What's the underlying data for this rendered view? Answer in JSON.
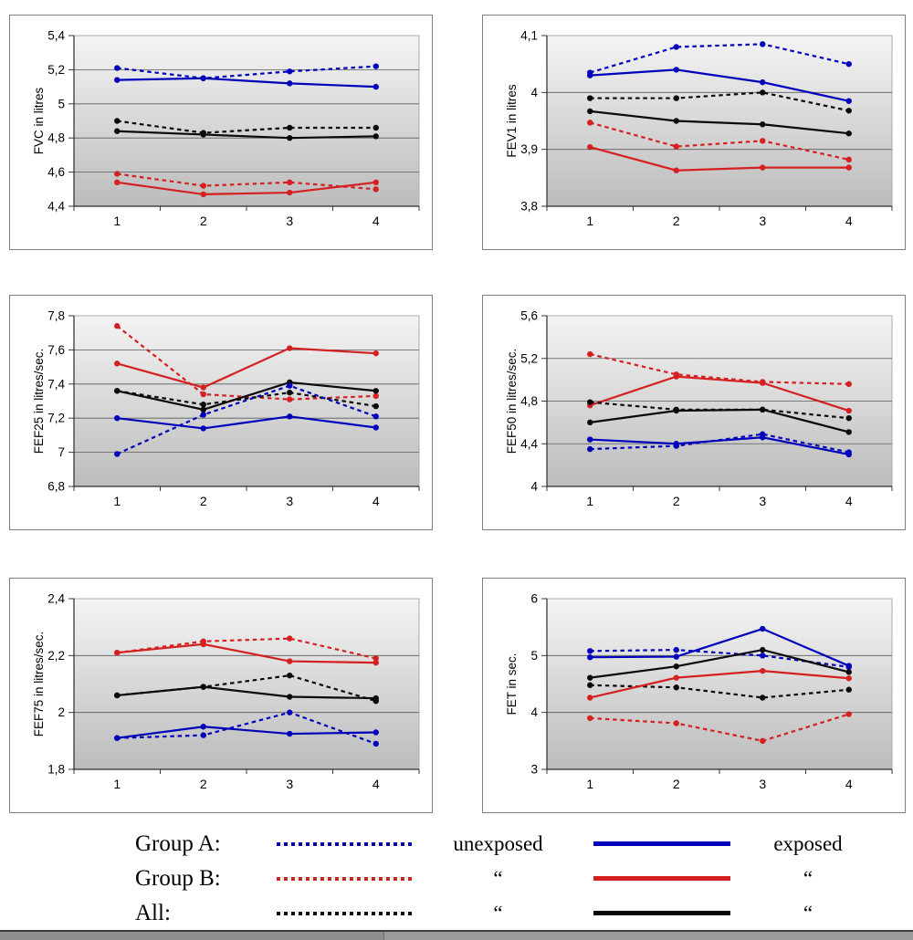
{
  "colors": {
    "blue": "#0000bb",
    "red": "#d42020",
    "black": "#0a0a0a"
  },
  "legend": {
    "rows": [
      {
        "group_label": "Group A:",
        "color": "blue",
        "dash_text": "unexposed",
        "solid_text": "exposed"
      },
      {
        "group_label": "Group B:",
        "color": "red",
        "dash_text": "“",
        "solid_text": "“"
      },
      {
        "group_label": "All:",
        "color": "black",
        "dash_text": "“",
        "solid_text": "“"
      }
    ]
  },
  "chart_data": [
    {
      "type": "line",
      "ylabel": "FVC in litres",
      "ylim": [
        4.4,
        5.4
      ],
      "yticks": [
        4.4,
        4.6,
        4.8,
        5,
        5.2,
        5.4
      ],
      "ytick_labels": [
        "4,4",
        "4,6",
        "4,8",
        "5",
        "5,2",
        "5,4"
      ],
      "categories": [
        "1",
        "2",
        "3",
        "4"
      ],
      "grid": true,
      "series": [
        {
          "name": "Group A unexposed",
          "color": "blue",
          "style": "dashed",
          "values": [
            5.21,
            5.15,
            5.19,
            5.22
          ]
        },
        {
          "name": "Group A exposed",
          "color": "blue",
          "style": "solid",
          "values": [
            5.14,
            5.15,
            5.12,
            5.1
          ]
        },
        {
          "name": "All unexposed",
          "color": "black",
          "style": "dashed",
          "values": [
            4.9,
            4.83,
            4.86,
            4.86
          ]
        },
        {
          "name": "All exposed",
          "color": "black",
          "style": "solid",
          "values": [
            4.84,
            4.82,
            4.8,
            4.81
          ]
        },
        {
          "name": "Group B unexposed",
          "color": "red",
          "style": "dashed",
          "values": [
            4.59,
            4.52,
            4.54,
            4.5
          ]
        },
        {
          "name": "Group B exposed",
          "color": "red",
          "style": "solid",
          "values": [
            4.54,
            4.47,
            4.48,
            4.54
          ]
        }
      ]
    },
    {
      "type": "line",
      "ylabel": "FEV1 in litres",
      "ylim": [
        3.8,
        4.1
      ],
      "yticks": [
        3.8,
        3.9,
        4,
        4.1
      ],
      "ytick_labels": [
        "3,8",
        "3,9",
        "4",
        "4,1"
      ],
      "categories": [
        "1",
        "2",
        "3",
        "4"
      ],
      "grid": true,
      "series": [
        {
          "name": "Group A unexposed",
          "color": "blue",
          "style": "dashed",
          "values": [
            4.035,
            4.08,
            4.085,
            4.05
          ]
        },
        {
          "name": "Group A exposed",
          "color": "blue",
          "style": "solid",
          "values": [
            4.03,
            4.04,
            4.018,
            3.985
          ]
        },
        {
          "name": "All unexposed",
          "color": "black",
          "style": "dashed",
          "values": [
            3.99,
            3.99,
            4.0,
            3.968
          ]
        },
        {
          "name": "All exposed",
          "color": "black",
          "style": "solid",
          "values": [
            3.967,
            3.95,
            3.944,
            3.928
          ]
        },
        {
          "name": "Group B unexposed",
          "color": "red",
          "style": "dashed",
          "values": [
            3.947,
            3.905,
            3.915,
            3.882
          ]
        },
        {
          "name": "Group B exposed",
          "color": "red",
          "style": "solid",
          "values": [
            3.904,
            3.863,
            3.868,
            3.868
          ]
        }
      ]
    },
    {
      "type": "line",
      "ylabel": "FEF25 in litres/sec.",
      "ylim": [
        6.8,
        7.8
      ],
      "yticks": [
        6.8,
        7,
        7.2,
        7.4,
        7.6,
        7.8
      ],
      "ytick_labels": [
        "6,8",
        "7",
        "7,2",
        "7,4",
        "7,6",
        "7,8"
      ],
      "categories": [
        "1",
        "2",
        "3",
        "4"
      ],
      "grid": true,
      "series": [
        {
          "name": "Group B unexposed",
          "color": "red",
          "style": "dashed",
          "values": [
            7.74,
            7.34,
            7.31,
            7.33
          ]
        },
        {
          "name": "Group B exposed",
          "color": "red",
          "style": "solid",
          "values": [
            7.52,
            7.38,
            7.61,
            7.58
          ]
        },
        {
          "name": "All unexposed",
          "color": "black",
          "style": "dashed",
          "values": [
            7.36,
            7.28,
            7.35,
            7.27
          ]
        },
        {
          "name": "All exposed",
          "color": "black",
          "style": "solid",
          "values": [
            7.36,
            7.25,
            7.41,
            7.36
          ]
        },
        {
          "name": "Group A unexposed",
          "color": "blue",
          "style": "dashed",
          "values": [
            6.99,
            7.22,
            7.39,
            7.21
          ]
        },
        {
          "name": "Group A exposed",
          "color": "blue",
          "style": "solid",
          "values": [
            7.2,
            7.14,
            7.21,
            7.145
          ]
        }
      ]
    },
    {
      "type": "line",
      "ylabel": "FEF50 in litres/sec.",
      "ylim": [
        4,
        5.6
      ],
      "yticks": [
        4,
        4.4,
        4.8,
        5.2,
        5.6
      ],
      "ytick_labels": [
        "4",
        "4,4",
        "4,8",
        "5,2",
        "5,6"
      ],
      "categories": [
        "1",
        "2",
        "3",
        "4"
      ],
      "grid": true,
      "series": [
        {
          "name": "Group B unexposed",
          "color": "red",
          "style": "dashed",
          "values": [
            5.24,
            5.05,
            4.98,
            4.96
          ]
        },
        {
          "name": "Group B exposed",
          "color": "red",
          "style": "solid",
          "values": [
            4.76,
            5.03,
            4.97,
            4.71
          ]
        },
        {
          "name": "All unexposed",
          "color": "black",
          "style": "dashed",
          "values": [
            4.79,
            4.72,
            4.72,
            4.64
          ]
        },
        {
          "name": "All exposed",
          "color": "black",
          "style": "solid",
          "values": [
            4.6,
            4.71,
            4.72,
            4.51
          ]
        },
        {
          "name": "Group A unexposed",
          "color": "blue",
          "style": "dashed",
          "values": [
            4.35,
            4.38,
            4.49,
            4.32
          ]
        },
        {
          "name": "Group A exposed",
          "color": "blue",
          "style": "solid",
          "values": [
            4.44,
            4.4,
            4.46,
            4.3
          ]
        }
      ]
    },
    {
      "type": "line",
      "ylabel": "FEF75 in litres/sec.",
      "ylim": [
        1.8,
        2.4
      ],
      "yticks": [
        1.8,
        2,
        2.2,
        2.4
      ],
      "ytick_labels": [
        "1,8",
        "2",
        "2,2",
        "2,4"
      ],
      "categories": [
        "1",
        "2",
        "3",
        "4"
      ],
      "grid": true,
      "series": [
        {
          "name": "Group B unexposed",
          "color": "red",
          "style": "dashed",
          "values": [
            2.21,
            2.25,
            2.26,
            2.19
          ]
        },
        {
          "name": "Group B exposed",
          "color": "red",
          "style": "solid",
          "values": [
            2.21,
            2.24,
            2.18,
            2.175
          ]
        },
        {
          "name": "All unexposed",
          "color": "black",
          "style": "dashed",
          "values": [
            2.06,
            2.09,
            2.13,
            2.04
          ]
        },
        {
          "name": "All exposed",
          "color": "black",
          "style": "solid",
          "values": [
            2.06,
            2.09,
            2.055,
            2.05
          ]
        },
        {
          "name": "Group A unexposed",
          "color": "blue",
          "style": "dashed",
          "values": [
            1.91,
            1.92,
            2.0,
            1.89
          ]
        },
        {
          "name": "Group A exposed",
          "color": "blue",
          "style": "solid",
          "values": [
            1.91,
            1.95,
            1.925,
            1.93
          ]
        }
      ]
    },
    {
      "type": "line",
      "ylabel": "FET in sec.",
      "ylim": [
        3,
        6
      ],
      "yticks": [
        3,
        4,
        5,
        6
      ],
      "ytick_labels": [
        "3",
        "4",
        "5",
        "6"
      ],
      "categories": [
        "1",
        "2",
        "3",
        "4"
      ],
      "grid": true,
      "series": [
        {
          "name": "Group A unexposed",
          "color": "blue",
          "style": "dashed",
          "values": [
            5.08,
            5.1,
            5.0,
            4.8
          ]
        },
        {
          "name": "Group A exposed",
          "color": "blue",
          "style": "solid",
          "values": [
            4.97,
            4.98,
            5.47,
            4.82
          ]
        },
        {
          "name": "All unexposed",
          "color": "black",
          "style": "dashed",
          "values": [
            4.48,
            4.44,
            4.26,
            4.4
          ]
        },
        {
          "name": "All exposed",
          "color": "black",
          "style": "solid",
          "values": [
            4.61,
            4.81,
            5.1,
            4.71
          ]
        },
        {
          "name": "Group B unexposed",
          "color": "red",
          "style": "dashed",
          "values": [
            3.9,
            3.81,
            3.5,
            3.97
          ]
        },
        {
          "name": "Group B exposed",
          "color": "red",
          "style": "solid",
          "values": [
            4.26,
            4.61,
            4.73,
            4.6
          ]
        }
      ]
    }
  ]
}
